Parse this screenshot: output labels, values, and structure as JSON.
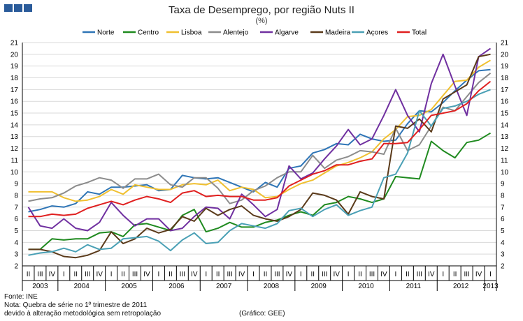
{
  "header": {
    "logo_color": "#2a5b9a",
    "title": "Taxa de Desemprego, por região Nuts II",
    "subtitle": "(%)"
  },
  "footer": {
    "source": "Fonte: INE",
    "note1": "Nota: Quebra de série no 1º trimestre de 2011",
    "note2": "devido à alteração metodológica sem retropolação",
    "credit": "(Gráfico: GEE)"
  },
  "chart_data": {
    "type": "line",
    "title": "Taxa de Desemprego, por região Nuts II",
    "subtitle": "(%)",
    "xlabel": "",
    "ylabel": "",
    "ylim": [
      2,
      21
    ],
    "yticks": [
      2,
      3,
      4,
      5,
      6,
      7,
      8,
      9,
      10,
      11,
      12,
      13,
      14,
      15,
      16,
      17,
      18,
      19,
      20,
      21
    ],
    "grid": true,
    "legend_position": "top",
    "quarter_labels": [
      "II",
      "III",
      "IV",
      "I",
      "II",
      "III",
      "IV",
      "I",
      "II",
      "III",
      "IV",
      "I",
      "II",
      "III",
      "IV",
      "I",
      "II",
      "III",
      "IV",
      "I",
      "II",
      "III",
      "IV",
      "I",
      "II",
      "III",
      "IV",
      "I",
      "II",
      "III",
      "IV",
      "I",
      "II",
      "III",
      "IV",
      "I",
      "II",
      "III",
      "IV",
      "I"
    ],
    "years": [
      {
        "label": "2003",
        "start": 0,
        "end": 2
      },
      {
        "label": "2004",
        "start": 3,
        "end": 6
      },
      {
        "label": "2005",
        "start": 7,
        "end": 10
      },
      {
        "label": "2006",
        "start": 11,
        "end": 14
      },
      {
        "label": "2007",
        "start": 15,
        "end": 18
      },
      {
        "label": "2008",
        "start": 19,
        "end": 22
      },
      {
        "label": "2009",
        "start": 23,
        "end": 26
      },
      {
        "label": "2010",
        "start": 27,
        "end": 30
      },
      {
        "label": "2011",
        "start": 31,
        "end": 34
      },
      {
        "label": "2012",
        "start": 35,
        "end": 38
      },
      {
        "label": "2013",
        "start": 39,
        "end": 39
      }
    ],
    "series": [
      {
        "name": "Norte",
        "color": "#2e75b6",
        "values": [
          6.6,
          6.8,
          7.1,
          7.0,
          7.3,
          8.3,
          8.1,
          8.7,
          8.7,
          8.8,
          8.9,
          8.4,
          8.5,
          9.7,
          9.5,
          9.4,
          9.5,
          9.1,
          8.7,
          8.3,
          9.1,
          8.7,
          10.3,
          10.5,
          11.6,
          11.9,
          12.4,
          12.3,
          13.2,
          12.8,
          12.6,
          12.7,
          14.1,
          15.2,
          15.1,
          15.9,
          16.9,
          17.8,
          18.6,
          18.7
        ]
      },
      {
        "name": "Centro",
        "color": "#1f8a1f",
        "values": [
          3.4,
          3.4,
          4.3,
          4.2,
          4.3,
          4.3,
          4.8,
          4.9,
          4.5,
          5.5,
          5.6,
          5.3,
          5.0,
          6.3,
          6.8,
          4.9,
          5.2,
          5.7,
          5.3,
          5.3,
          5.7,
          5.9,
          6.3,
          6.6,
          6.3,
          7.2,
          7.4,
          7.9,
          7.7,
          7.4,
          7.7,
          9.6,
          9.5,
          9.4,
          12.6,
          11.8,
          11.2,
          12.5,
          12.7,
          13.3
        ]
      },
      {
        "name": "Lisboa",
        "color": "#f0c030",
        "values": [
          8.3,
          8.3,
          8.3,
          7.8,
          7.5,
          7.6,
          7.9,
          8.5,
          8.1,
          8.9,
          8.7,
          8.5,
          8.5,
          8.9,
          9.0,
          8.9,
          9.3,
          8.4,
          8.7,
          8.5,
          7.8,
          7.9,
          8.5,
          9.0,
          9.3,
          9.9,
          10.5,
          10.8,
          11.2,
          11.7,
          12.8,
          13.6,
          14.7,
          14.8,
          15.3,
          16.5,
          17.7,
          17.8,
          18.9,
          19.5
        ]
      },
      {
        "name": "Alentejo",
        "color": "#8c8c8c",
        "values": [
          7.5,
          7.7,
          7.8,
          8.2,
          8.8,
          9.1,
          9.5,
          9.3,
          8.6,
          9.4,
          9.4,
          9.8,
          8.9,
          8.7,
          9.5,
          9.5,
          8.6,
          7.3,
          7.6,
          8.4,
          8.8,
          9.5,
          10.0,
          10.0,
          11.4,
          10.3,
          11.0,
          11.3,
          11.8,
          11.7,
          11.5,
          13.7,
          11.8,
          12.3,
          13.9,
          15.5,
          15.2,
          16.4,
          17.6,
          18.4
        ]
      },
      {
        "name": "Algarve",
        "color": "#7030a0",
        "values": [
          7.0,
          5.4,
          5.2,
          6.0,
          5.2,
          5.0,
          5.7,
          7.4,
          6.3,
          5.4,
          6.0,
          6.0,
          5.0,
          5.2,
          6.2,
          7.0,
          6.9,
          6.0,
          8.1,
          7.2,
          6.2,
          6.8,
          10.5,
          9.4,
          9.9,
          11.1,
          12.2,
          13.6,
          12.3,
          12.8,
          14.8,
          17.0,
          14.8,
          13.4,
          17.5,
          20.0,
          17.3,
          14.8,
          19.8,
          20.5
        ]
      },
      {
        "name": "Madeira",
        "color": "#5a3a1a",
        "values": [
          3.4,
          3.4,
          3.2,
          2.8,
          2.7,
          2.9,
          3.3,
          4.9,
          3.9,
          4.3,
          5.2,
          4.8,
          5.1,
          6.2,
          5.8,
          6.9,
          6.3,
          6.8,
          7.1,
          6.3,
          6.0,
          5.8,
          6.2,
          6.8,
          8.2,
          8.0,
          7.6,
          6.4,
          8.3,
          7.9,
          7.7,
          13.9,
          13.7,
          14.5,
          13.4,
          16.2,
          16.8,
          17.4,
          19.8,
          20.0
        ]
      },
      {
        "name": "Açores",
        "color": "#4aa0b5",
        "values": [
          2.9,
          3.1,
          3.2,
          3.5,
          3.2,
          3.8,
          3.4,
          3.5,
          4.3,
          4.4,
          4.5,
          4.1,
          3.3,
          4.2,
          4.8,
          3.9,
          4.0,
          5.0,
          5.6,
          5.4,
          5.2,
          5.6,
          6.7,
          6.9,
          6.2,
          6.8,
          7.2,
          6.3,
          6.7,
          7.0,
          9.5,
          9.8,
          11.6,
          15.2,
          13.9,
          15.4,
          15.6,
          16.0,
          16.6,
          17.0
        ]
      },
      {
        "name": "Total",
        "color": "#e02020",
        "values": [
          6.2,
          6.2,
          6.4,
          6.3,
          6.4,
          6.9,
          7.2,
          7.5,
          7.2,
          7.6,
          7.9,
          7.7,
          7.4,
          8.2,
          8.4,
          7.9,
          8.0,
          7.9,
          7.9,
          7.6,
          7.6,
          7.8,
          8.8,
          9.3,
          9.8,
          10.1,
          10.6,
          10.6,
          10.9,
          11.1,
          12.4,
          12.4,
          12.5,
          13.6,
          14.8,
          15.0,
          15.2,
          15.8,
          16.9,
          17.7
        ]
      }
    ]
  }
}
